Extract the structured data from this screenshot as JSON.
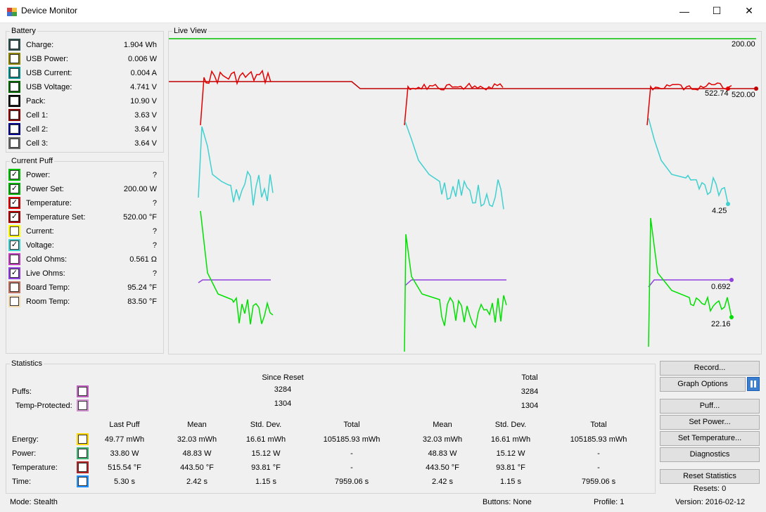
{
  "window": {
    "title": "Device Monitor",
    "minimize": "—",
    "maximize": "☐",
    "close": "✕"
  },
  "battery": {
    "label": "Battery",
    "rows": [
      {
        "label": "Charge:",
        "value": "1.904 Wh",
        "color": "#2f4f4f"
      },
      {
        "label": "USB Power:",
        "value": "0.006 W",
        "color": "#8b8000"
      },
      {
        "label": "USB Current:",
        "value": "0.004 A",
        "color": "#008b8b"
      },
      {
        "label": "USB Voltage:",
        "value": "4.741 V",
        "color": "#006400"
      },
      {
        "label": "Pack:",
        "value": "10.90 V",
        "color": "#000000"
      },
      {
        "label": "Cell 1:",
        "value": "3.63 V",
        "color": "#8b0000"
      },
      {
        "label": "Cell 2:",
        "value": "3.64 V",
        "color": "#00008b"
      },
      {
        "label": "Cell 3:",
        "value": "3.64 V",
        "color": "#696969"
      }
    ]
  },
  "current_puff": {
    "label": "Current Puff",
    "rows": [
      {
        "label": "Power:",
        "value": "?",
        "color": "#00c000",
        "checked": "✓"
      },
      {
        "label": "Power Set:",
        "value": "200.00 W",
        "color": "#00b000",
        "checked": "✓"
      },
      {
        "label": "Temperature:",
        "value": "?",
        "color": "#e00000",
        "checked": "✓"
      },
      {
        "label": "Temperature Set:",
        "value": "520.00 °F",
        "color": "#b00000",
        "checked": "✓"
      },
      {
        "label": "Current:",
        "value": "?",
        "color": "#ffff00",
        "checked": ""
      },
      {
        "label": "Voltage:",
        "value": "?",
        "color": "#40d0d0",
        "checked": "✓"
      },
      {
        "label": "Cold Ohms:",
        "value": "0.561 Ω",
        "color": "#c040c0",
        "checked": ""
      },
      {
        "label": "Live Ohms:",
        "value": "?",
        "color": "#9040e0",
        "checked": "✓"
      },
      {
        "label": "Board Temp:",
        "value": "95.24 °F",
        "color": "#c07060",
        "checked": ""
      },
      {
        "label": "Room Temp:",
        "value": "83.50 °F",
        "color": "#f5deb3",
        "checked": ""
      }
    ]
  },
  "live_view": {
    "label": "Live View"
  },
  "chart_data": {
    "type": "line",
    "series": [
      {
        "color": "#00c000",
        "name": "",
        "end_label": "200.00"
      },
      {
        "color": "#c00000",
        "name": "",
        "end_label": "520.00"
      },
      {
        "color": "#e00000",
        "name": "",
        "end_label": "522.74"
      },
      {
        "color": "#40d0d0",
        "name": "",
        "end_label": "4.25"
      },
      {
        "color": "#9040e0",
        "name": "",
        "end_label": "0.692"
      },
      {
        "color": "#00e000",
        "name": "",
        "end_label": "22.16"
      }
    ]
  },
  "statistics": {
    "label": "Statistics",
    "since_reset": "Since Reset",
    "total": "Total",
    "puffs_label": "Puffs:",
    "puffs_since": "3284",
    "puffs_total": "3284",
    "temp_label": "Temp-Protected:",
    "temp_since": "1304",
    "temp_total": "1304",
    "headers": [
      "Last Puff",
      "Mean",
      "Std. Dev.",
      "Total",
      "Mean",
      "Std. Dev.",
      "Total"
    ],
    "rows": [
      {
        "label": "Energy:",
        "color": "#ffd700",
        "cells": [
          "49.77 mWh",
          "32.03 mWh",
          "16.61 mWh",
          "105185.93 mWh",
          "32.03 mWh",
          "16.61 mWh",
          "105185.93 mWh"
        ]
      },
      {
        "label": "Power:",
        "color": "#3cb371",
        "cells": [
          "33.80 W",
          "48.83 W",
          "15.12 W",
          "-",
          "48.83 W",
          "15.12 W",
          "-"
        ]
      },
      {
        "label": "Temperature:",
        "color": "#b22222",
        "cells": [
          "515.54 °F",
          "443.50 °F",
          "93.81 °F",
          "-",
          "443.50 °F",
          "93.81 °F",
          "-"
        ]
      },
      {
        "label": "Time:",
        "color": "#1e90ff",
        "cells": [
          "5.30 s",
          "2.42 s",
          "1.15 s",
          "7959.06 s",
          "2.42 s",
          "1.15 s",
          "7959.06 s"
        ]
      }
    ]
  },
  "buttons": {
    "record": "Record...",
    "graph_options": "Graph Options",
    "puff": "Puff...",
    "set_power": "Set Power...",
    "set_temperature": "Set Temperature...",
    "diagnostics": "Diagnostics",
    "reset_statistics": "Reset Statistics",
    "resets": "Resets: 0"
  },
  "status": {
    "mode": "Mode: Stealth",
    "buttons": "Buttons: None",
    "profile": "Profile: 1",
    "version": "Version: 2016-02-12"
  }
}
